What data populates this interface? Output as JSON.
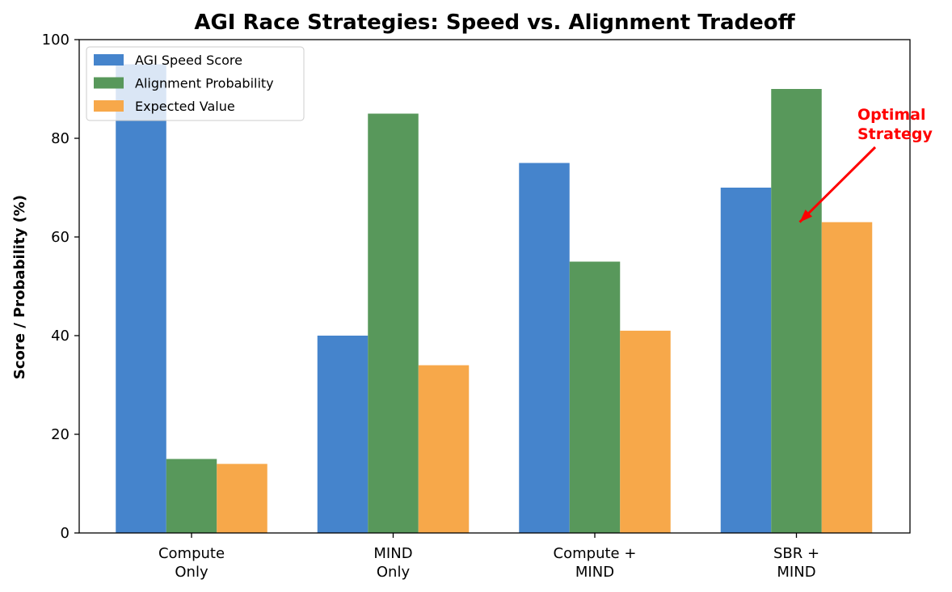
{
  "chart_data": {
    "type": "bar",
    "title": "AGI Race Strategies: Speed vs. Alignment Tradeoff",
    "xlabel": "",
    "ylabel": "Score / Probability (%)",
    "ylim": [
      0,
      100
    ],
    "yticks": [
      0,
      20,
      40,
      60,
      80,
      100
    ],
    "grid": false,
    "legend_position": "top-left",
    "categories": [
      [
        "Compute",
        "Only"
      ],
      [
        "MIND",
        "Only"
      ],
      [
        "Compute +",
        "MIND"
      ],
      [
        "SBR +",
        "MIND"
      ]
    ],
    "series": [
      {
        "name": "AGI Speed Score",
        "color": "#4584cc",
        "values": [
          95,
          40,
          75,
          70
        ]
      },
      {
        "name": "Alignment Probability",
        "color": "#58985b",
        "values": [
          15,
          85,
          55,
          90
        ]
      },
      {
        "name": "Expected Value",
        "color": "#f7a84a",
        "values": [
          14,
          34,
          41,
          63
        ]
      }
    ],
    "annotation": {
      "lines": [
        "Optimal",
        "Strategy"
      ],
      "color": "#ff0000",
      "points_to": {
        "category_index": 3,
        "value": 63
      }
    }
  }
}
